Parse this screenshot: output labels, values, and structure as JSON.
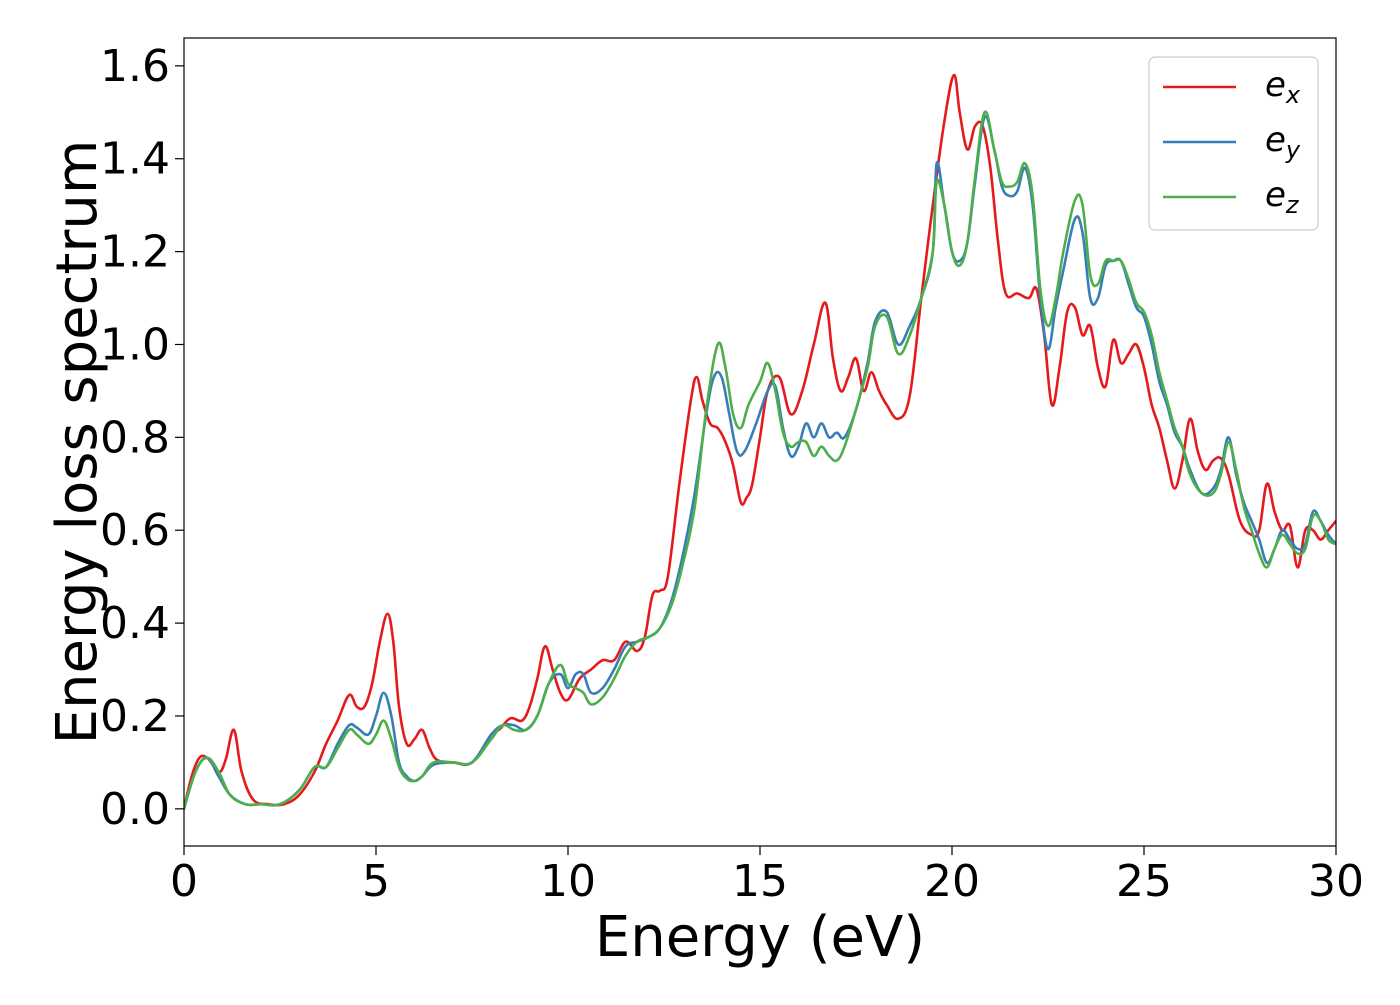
{
  "chart_data": {
    "type": "line",
    "xlabel": "Energy (eV)",
    "ylabel": "Energy loss spectrum",
    "xlim": [
      0,
      30
    ],
    "ylim": [
      -0.08,
      1.66
    ],
    "xticks": [
      0,
      5,
      10,
      15,
      20,
      25,
      30
    ],
    "xtick_labels": [
      "0",
      "5",
      "10",
      "15",
      "20",
      "25",
      "30"
    ],
    "yticks": [
      0.0,
      0.2,
      0.4,
      0.6,
      0.8,
      1.0,
      1.2,
      1.4,
      1.6
    ],
    "ytick_labels": [
      "0.0",
      "0.2",
      "0.4",
      "0.6",
      "0.8",
      "1.0",
      "1.2",
      "1.4",
      "1.6"
    ],
    "grid": false,
    "legend_position": "top-right",
    "series": [
      {
        "name": "e_x",
        "legend_main": "e",
        "legend_sub": "x",
        "color": "#e41a1c",
        "x": [
          0,
          0.2,
          0.4,
          0.6,
          0.8,
          0.95,
          1.1,
          1.3,
          1.5,
          1.8,
          2.2,
          2.6,
          3.0,
          3.4,
          3.7,
          4.0,
          4.3,
          4.5,
          4.7,
          4.9,
          5.1,
          5.3,
          5.45,
          5.6,
          5.8,
          6.0,
          6.2,
          6.4,
          6.6,
          7.0,
          7.5,
          8.0,
          8.2,
          8.5,
          8.8,
          9.0,
          9.2,
          9.4,
          9.6,
          9.8,
          10.0,
          10.3,
          10.6,
          10.9,
          11.2,
          11.5,
          11.8,
          12.0,
          12.2,
          12.4,
          12.6,
          12.9,
          13.2,
          13.35,
          13.5,
          13.7,
          13.9,
          14.1,
          14.3,
          14.5,
          14.65,
          14.8,
          15.0,
          15.2,
          15.5,
          15.8,
          16.1,
          16.4,
          16.7,
          16.9,
          17.1,
          17.3,
          17.5,
          17.7,
          17.9,
          18.1,
          18.3,
          18.6,
          18.9,
          19.2,
          19.5,
          19.8,
          20.05,
          20.2,
          20.4,
          20.6,
          20.8,
          21.0,
          21.2,
          21.4,
          21.7,
          22.0,
          22.2,
          22.4,
          22.6,
          22.8,
          23.0,
          23.2,
          23.4,
          23.6,
          23.8,
          24.0,
          24.2,
          24.4,
          24.6,
          24.8,
          25.0,
          25.2,
          25.4,
          25.6,
          25.8,
          26.0,
          26.2,
          26.4,
          26.6,
          26.8,
          27.0,
          27.2,
          27.5,
          27.8,
          28.0,
          28.2,
          28.4,
          28.6,
          28.8,
          29.0,
          29.2,
          29.4,
          29.6,
          29.8,
          30.0
        ],
        "values": [
          0.0,
          0.07,
          0.11,
          0.11,
          0.09,
          0.08,
          0.11,
          0.17,
          0.08,
          0.02,
          0.01,
          0.01,
          0.03,
          0.08,
          0.14,
          0.19,
          0.245,
          0.22,
          0.22,
          0.27,
          0.36,
          0.42,
          0.36,
          0.22,
          0.14,
          0.15,
          0.17,
          0.13,
          0.105,
          0.1,
          0.1,
          0.16,
          0.17,
          0.195,
          0.19,
          0.22,
          0.28,
          0.35,
          0.3,
          0.25,
          0.235,
          0.28,
          0.3,
          0.32,
          0.32,
          0.36,
          0.34,
          0.37,
          0.46,
          0.47,
          0.5,
          0.7,
          0.88,
          0.93,
          0.88,
          0.83,
          0.82,
          0.79,
          0.74,
          0.66,
          0.67,
          0.7,
          0.8,
          0.9,
          0.93,
          0.85,
          0.9,
          1.0,
          1.09,
          0.97,
          0.9,
          0.93,
          0.97,
          0.9,
          0.94,
          0.9,
          0.87,
          0.84,
          0.89,
          1.1,
          1.3,
          1.48,
          1.58,
          1.5,
          1.42,
          1.47,
          1.47,
          1.38,
          1.22,
          1.11,
          1.11,
          1.1,
          1.12,
          1.02,
          0.87,
          0.95,
          1.07,
          1.08,
          1.02,
          1.04,
          0.95,
          0.91,
          1.01,
          0.96,
          0.98,
          1.0,
          0.95,
          0.87,
          0.82,
          0.75,
          0.69,
          0.75,
          0.84,
          0.77,
          0.73,
          0.75,
          0.755,
          0.72,
          0.62,
          0.59,
          0.6,
          0.7,
          0.64,
          0.6,
          0.61,
          0.52,
          0.6,
          0.6,
          0.58,
          0.6,
          0.62
        ]
      },
      {
        "name": "e_y",
        "legend_main": "e",
        "legend_sub": "y",
        "color": "#377eb8",
        "x": [
          0,
          0.3,
          0.6,
          0.9,
          1.2,
          1.6,
          2.0,
          2.5,
          3.0,
          3.4,
          3.7,
          4.0,
          4.3,
          4.5,
          4.8,
          5.0,
          5.2,
          5.4,
          5.6,
          5.8,
          6.0,
          6.2,
          6.5,
          7.0,
          7.5,
          8.0,
          8.3,
          8.6,
          8.9,
          9.2,
          9.5,
          9.8,
          10.0,
          10.2,
          10.4,
          10.6,
          10.9,
          11.2,
          11.5,
          11.8,
          12.1,
          12.4,
          12.7,
          13.0,
          13.3,
          13.6,
          13.8,
          14.0,
          14.2,
          14.4,
          14.6,
          14.9,
          15.2,
          15.4,
          15.6,
          15.8,
          16.0,
          16.2,
          16.4,
          16.6,
          16.8,
          17.0,
          17.2,
          17.5,
          17.8,
          18.0,
          18.3,
          18.6,
          18.9,
          19.2,
          19.5,
          19.6,
          19.8,
          20.0,
          20.2,
          20.4,
          20.6,
          20.85,
          21.1,
          21.3,
          21.5,
          21.7,
          21.9,
          22.1,
          22.3,
          22.5,
          22.7,
          22.9,
          23.2,
          23.4,
          23.6,
          23.8,
          24.0,
          24.2,
          24.4,
          24.6,
          24.8,
          25.0,
          25.2,
          25.4,
          25.6,
          25.8,
          26.0,
          26.2,
          26.5,
          26.8,
          27.0,
          27.2,
          27.4,
          27.6,
          27.8,
          28.0,
          28.2,
          28.4,
          28.6,
          28.8,
          29.0,
          29.2,
          29.4,
          29.6,
          29.8,
          30.0
        ],
        "values": [
          0.0,
          0.08,
          0.11,
          0.07,
          0.03,
          0.01,
          0.01,
          0.01,
          0.04,
          0.09,
          0.09,
          0.14,
          0.18,
          0.175,
          0.16,
          0.2,
          0.25,
          0.2,
          0.1,
          0.07,
          0.06,
          0.07,
          0.095,
          0.1,
          0.1,
          0.16,
          0.18,
          0.18,
          0.17,
          0.2,
          0.27,
          0.29,
          0.26,
          0.29,
          0.29,
          0.25,
          0.26,
          0.3,
          0.35,
          0.36,
          0.37,
          0.39,
          0.45,
          0.55,
          0.68,
          0.85,
          0.93,
          0.93,
          0.85,
          0.77,
          0.77,
          0.83,
          0.9,
          0.91,
          0.82,
          0.76,
          0.78,
          0.83,
          0.8,
          0.83,
          0.8,
          0.81,
          0.8,
          0.86,
          0.96,
          1.05,
          1.07,
          1.0,
          1.04,
          1.1,
          1.2,
          1.39,
          1.3,
          1.2,
          1.18,
          1.22,
          1.35,
          1.49,
          1.42,
          1.34,
          1.32,
          1.33,
          1.38,
          1.3,
          1.1,
          0.99,
          1.08,
          1.16,
          1.27,
          1.24,
          1.1,
          1.1,
          1.17,
          1.18,
          1.18,
          1.13,
          1.08,
          1.06,
          1.0,
          0.92,
          0.87,
          0.81,
          0.78,
          0.73,
          0.68,
          0.69,
          0.73,
          0.8,
          0.72,
          0.66,
          0.62,
          0.58,
          0.53,
          0.56,
          0.6,
          0.58,
          0.56,
          0.57,
          0.64,
          0.62,
          0.59,
          0.57
        ]
      },
      {
        "name": "e_z",
        "legend_main": "e",
        "legend_sub": "z",
        "color": "#4daf4a",
        "x": [
          0,
          0.3,
          0.6,
          0.9,
          1.2,
          1.6,
          2.0,
          2.5,
          3.0,
          3.4,
          3.7,
          4.0,
          4.3,
          4.5,
          4.8,
          5.0,
          5.2,
          5.4,
          5.6,
          5.8,
          6.0,
          6.2,
          6.5,
          7.0,
          7.5,
          8.0,
          8.3,
          8.6,
          8.9,
          9.2,
          9.5,
          9.8,
          10.0,
          10.2,
          10.4,
          10.6,
          10.9,
          11.2,
          11.5,
          11.8,
          12.1,
          12.4,
          12.7,
          13.0,
          13.3,
          13.6,
          13.9,
          14.1,
          14.3,
          14.5,
          14.7,
          15.0,
          15.2,
          15.4,
          15.6,
          15.8,
          16.0,
          16.2,
          16.4,
          16.6,
          16.8,
          17.0,
          17.2,
          17.5,
          17.8,
          18.0,
          18.3,
          18.6,
          18.9,
          19.2,
          19.5,
          19.6,
          19.8,
          20.0,
          20.2,
          20.4,
          20.6,
          20.85,
          21.1,
          21.3,
          21.5,
          21.7,
          21.9,
          22.1,
          22.3,
          22.5,
          22.7,
          22.9,
          23.2,
          23.4,
          23.6,
          23.8,
          24.0,
          24.2,
          24.4,
          24.6,
          24.8,
          25.0,
          25.2,
          25.4,
          25.6,
          25.8,
          26.0,
          26.2,
          26.5,
          26.8,
          27.0,
          27.2,
          27.4,
          27.6,
          27.8,
          28.0,
          28.2,
          28.4,
          28.6,
          28.8,
          29.0,
          29.2,
          29.4,
          29.6,
          29.8,
          30.0
        ],
        "values": [
          0.0,
          0.08,
          0.11,
          0.08,
          0.03,
          0.01,
          0.01,
          0.01,
          0.04,
          0.09,
          0.09,
          0.13,
          0.17,
          0.16,
          0.14,
          0.16,
          0.19,
          0.15,
          0.09,
          0.065,
          0.06,
          0.07,
          0.1,
          0.1,
          0.1,
          0.15,
          0.18,
          0.17,
          0.17,
          0.2,
          0.27,
          0.31,
          0.27,
          0.26,
          0.25,
          0.225,
          0.24,
          0.28,
          0.33,
          0.36,
          0.37,
          0.39,
          0.44,
          0.53,
          0.65,
          0.86,
          1.0,
          0.95,
          0.85,
          0.82,
          0.87,
          0.92,
          0.96,
          0.9,
          0.81,
          0.78,
          0.79,
          0.79,
          0.76,
          0.78,
          0.76,
          0.75,
          0.78,
          0.86,
          0.95,
          1.04,
          1.06,
          0.98,
          1.02,
          1.1,
          1.2,
          1.35,
          1.3,
          1.2,
          1.17,
          1.22,
          1.36,
          1.5,
          1.42,
          1.35,
          1.34,
          1.35,
          1.39,
          1.32,
          1.12,
          1.04,
          1.1,
          1.2,
          1.31,
          1.3,
          1.15,
          1.13,
          1.18,
          1.18,
          1.18,
          1.14,
          1.09,
          1.07,
          1.02,
          0.94,
          0.88,
          0.82,
          0.78,
          0.72,
          0.68,
          0.68,
          0.72,
          0.79,
          0.73,
          0.65,
          0.6,
          0.55,
          0.52,
          0.56,
          0.59,
          0.57,
          0.55,
          0.56,
          0.63,
          0.62,
          0.58,
          0.57
        ]
      }
    ]
  }
}
